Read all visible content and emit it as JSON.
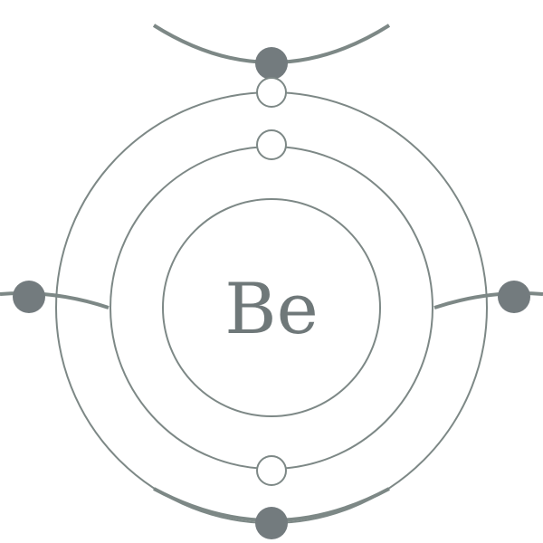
{
  "atom": {
    "symbol": "Be",
    "shells": [
      {
        "shell": 1,
        "electrons": 2
      },
      {
        "shell": 2,
        "electrons": 2
      }
    ]
  },
  "colors": {
    "background": "#ffffff",
    "line": "#7d8886",
    "electron_hollow": "#ffffff",
    "electron_filled": "#737b7e",
    "text": "#6f7879"
  }
}
